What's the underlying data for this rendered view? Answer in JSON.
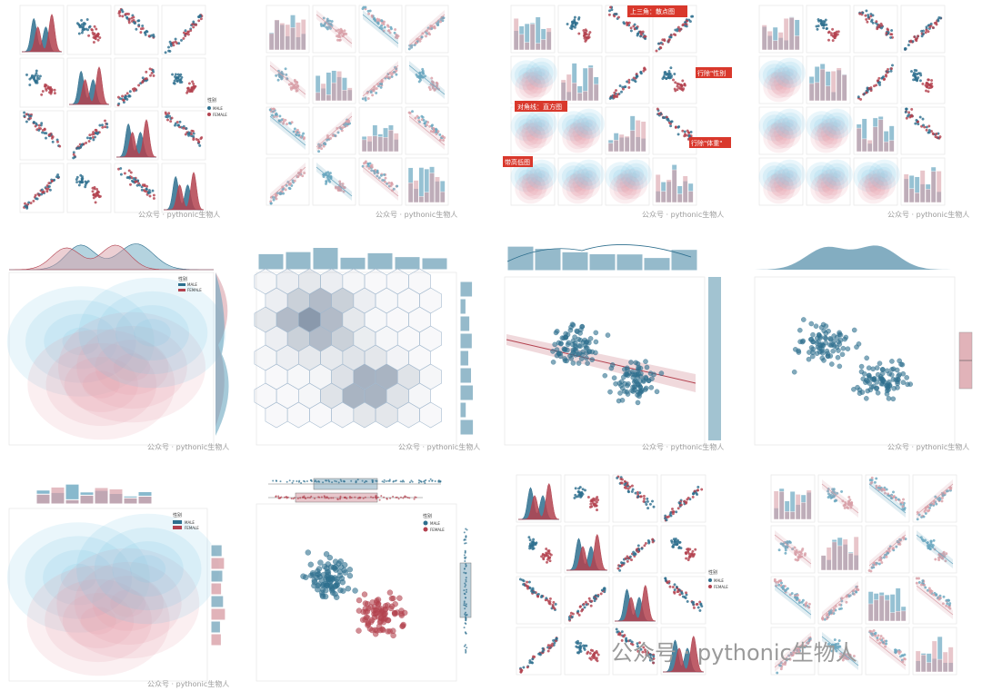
{
  "colors": {
    "blue": "#2e6f8e",
    "red": "#b3424f",
    "lightblue": "#6aa7c0",
    "pink": "#d9a0a8",
    "kde_blue": "#7ec6e6",
    "kde_red": "#e89aa5",
    "hex": "#8fa6c2",
    "annot_red": "#d9382c"
  },
  "watermark": {
    "small": "公众号 · pythonic生物人",
    "big": "公众号 · pythonic生物人"
  },
  "annotations": {
    "upper": "上三角：散点图",
    "right1": "行除\"性别",
    "diag": "对角线：直方图",
    "right2": "行除\"体重\"",
    "lower": "带高低图"
  },
  "legend": {
    "title": "性别",
    "items": [
      "MALE",
      "FEMALE"
    ]
  },
  "chart_data": [
    {
      "type": "scatter",
      "panel": "pairplot-kde-diagonal",
      "series": [
        {
          "name": "MALE"
        },
        {
          "name": "FEMALE"
        }
      ]
    },
    {
      "type": "scatter",
      "panel": "pairplot-hist-regression"
    },
    {
      "type": "scatter",
      "panel": "pairplot-mixed-annotated"
    },
    {
      "type": "scatter",
      "panel": "pairplot-mixed-legend"
    },
    {
      "type": "heatmap",
      "panel": "jointplot-kde-marginal-kde",
      "series": [
        {
          "name": "MALE"
        },
        {
          "name": "FEMALE"
        }
      ]
    },
    {
      "type": "heatmap",
      "panel": "jointplot-hexbin"
    },
    {
      "type": "scatter",
      "panel": "jointplot-regression"
    },
    {
      "type": "scatter",
      "panel": "jointplot-scatter-boxplot"
    },
    {
      "type": "heatmap",
      "panel": "jointplot-kde-marginal-hist",
      "series": [
        {
          "name": "MALE"
        },
        {
          "name": "FEMALE"
        }
      ]
    },
    {
      "type": "scatter",
      "panel": "jointplot-scatter-strip-box",
      "series": [
        {
          "name": "MALE"
        },
        {
          "name": "FEMALE"
        }
      ]
    },
    {
      "type": "scatter",
      "panel": "pairplot-kde-diagonal-2",
      "series": [
        {
          "name": "MALE"
        },
        {
          "name": "FEMALE"
        }
      ]
    },
    {
      "type": "scatter",
      "panel": "pairplot-hist-regression-2"
    }
  ]
}
